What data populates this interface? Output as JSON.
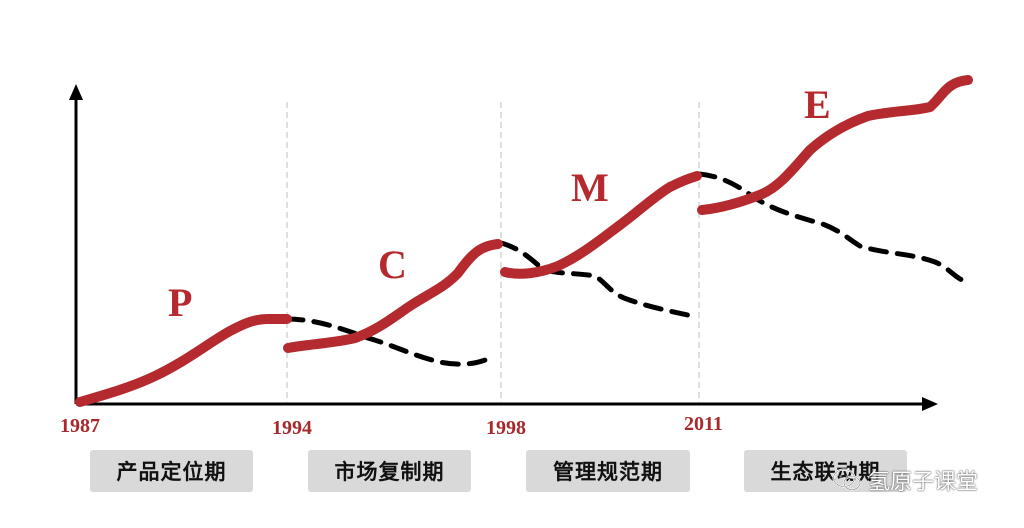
{
  "years": [
    "1987",
    "1994",
    "1998",
    "2011"
  ],
  "stage_letters": [
    "P",
    "C",
    "M",
    "E"
  ],
  "phases": [
    "产品定位期",
    "市场复制期",
    "管理规范期",
    "生态联动期"
  ],
  "watermark": {
    "text": "氢原子课堂",
    "icon": "wechat-icon"
  },
  "colors": {
    "growth_curve": "#b52a2e",
    "decline_curve": "#000000",
    "year_text": "#a8282b",
    "phase_box": "#d9d9d9"
  }
}
